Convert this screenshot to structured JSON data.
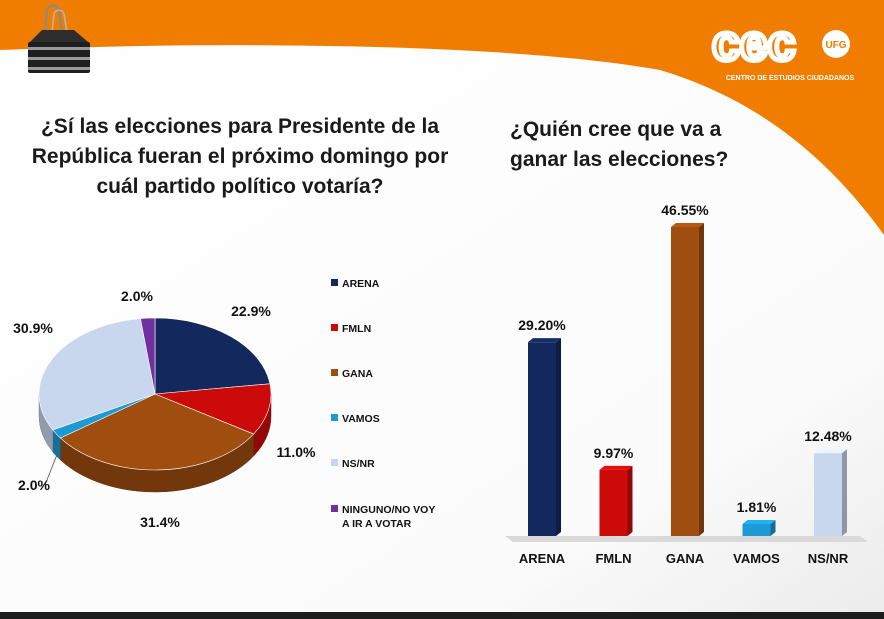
{
  "header": {
    "accent_color": "#f07d00",
    "logo": {
      "wordmark": "cec",
      "badge": "UFG",
      "subtitle": "CENTRO DE ESTUDIOS CIUDADANOS"
    }
  },
  "colors": {
    "ARENA": "#13295e",
    "FMLN": "#cc0a0a",
    "GANA": "#a04d10",
    "VAMOS": "#1d9ad3",
    "NS/NR": "#c9d7ee",
    "NINGUNO": "#7030a0"
  },
  "chart_data": [
    {
      "type": "pie",
      "title": "¿Sí las elecciones para Presidente de la República fueran el próximo domingo por cuál partido político votaría?",
      "slices": [
        {
          "label": "ARENA",
          "value": 22.9,
          "value_label": "22.9%"
        },
        {
          "label": "FMLN",
          "value": 11.0,
          "value_label": "11.0%"
        },
        {
          "label": "GANA",
          "value": 31.4,
          "value_label": "31.4%"
        },
        {
          "label": "VAMOS",
          "value": 2.0,
          "value_label": "2.0%"
        },
        {
          "label": "NS/NR",
          "value": 30.9,
          "value_label": "30.9%"
        },
        {
          "label": "NINGUNO/NO VOY A IR A VOTAR",
          "value": 2.0,
          "value_label": "2.0%"
        }
      ],
      "legend_position": "right",
      "style": "3d"
    },
    {
      "type": "bar",
      "title": "¿Quién cree que va a ganar las elecciones?",
      "categories": [
        "ARENA",
        "FMLN",
        "GANA",
        "VAMOS",
        "NS/NR"
      ],
      "values": [
        29.2,
        9.97,
        46.55,
        1.81,
        12.48
      ],
      "value_labels": [
        "29.20%",
        "9.97%",
        "46.55%",
        "1.81%",
        "12.48%"
      ],
      "ylim": [
        0,
        50
      ],
      "grid": false,
      "style": "3d"
    }
  ]
}
